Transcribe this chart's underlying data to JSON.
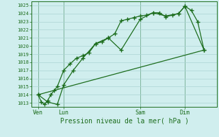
{
  "title": "",
  "xlabel": "Pression niveau de la mer( hPa )",
  "bg_color": "#d0eeee",
  "grid_color": "#aad4d4",
  "line_color": "#1a6b1a",
  "ylim": [
    1012.5,
    1025.5
  ],
  "yticks": [
    1013,
    1014,
    1015,
    1016,
    1017,
    1018,
    1019,
    1020,
    1021,
    1022,
    1023,
    1024,
    1025
  ],
  "xtick_labels": [
    "Ven",
    "Lun",
    "Sam",
    "Dim"
  ],
  "xtick_positions": [
    2,
    10,
    34,
    48
  ],
  "vline_positions": [
    2,
    10,
    34,
    48
  ],
  "xlim": [
    0,
    58
  ],
  "line1_x": [
    2,
    3,
    4,
    5,
    6,
    7,
    8,
    10,
    12,
    14,
    16,
    18,
    20,
    22,
    24,
    26,
    28,
    30,
    32,
    34,
    36,
    38,
    40,
    42,
    44,
    46,
    48,
    50,
    52,
    54
  ],
  "line1_y": [
    1014.0,
    1013.1,
    1012.8,
    1013.3,
    1014.0,
    1014.5,
    1015.0,
    1017.0,
    1017.8,
    1018.5,
    1018.8,
    1019.2,
    1020.3,
    1020.5,
    1021.0,
    1021.5,
    1023.1,
    1023.3,
    1023.5,
    1023.7,
    1023.8,
    1024.1,
    1024.1,
    1023.6,
    1023.8,
    1024.0,
    1024.9,
    1024.4,
    1023.0,
    1019.5
  ],
  "line2_x": [
    2,
    5,
    8,
    10,
    13,
    16,
    20,
    24,
    28,
    34,
    38,
    42,
    46,
    48,
    54
  ],
  "line2_y": [
    1014.0,
    1013.1,
    1012.8,
    1015.2,
    1017.0,
    1018.5,
    1020.3,
    1021.0,
    1019.5,
    1023.3,
    1024.1,
    1023.7,
    1024.0,
    1024.9,
    1019.5
  ],
  "line3_x": [
    2,
    54
  ],
  "line3_y": [
    1014.0,
    1019.5
  ]
}
